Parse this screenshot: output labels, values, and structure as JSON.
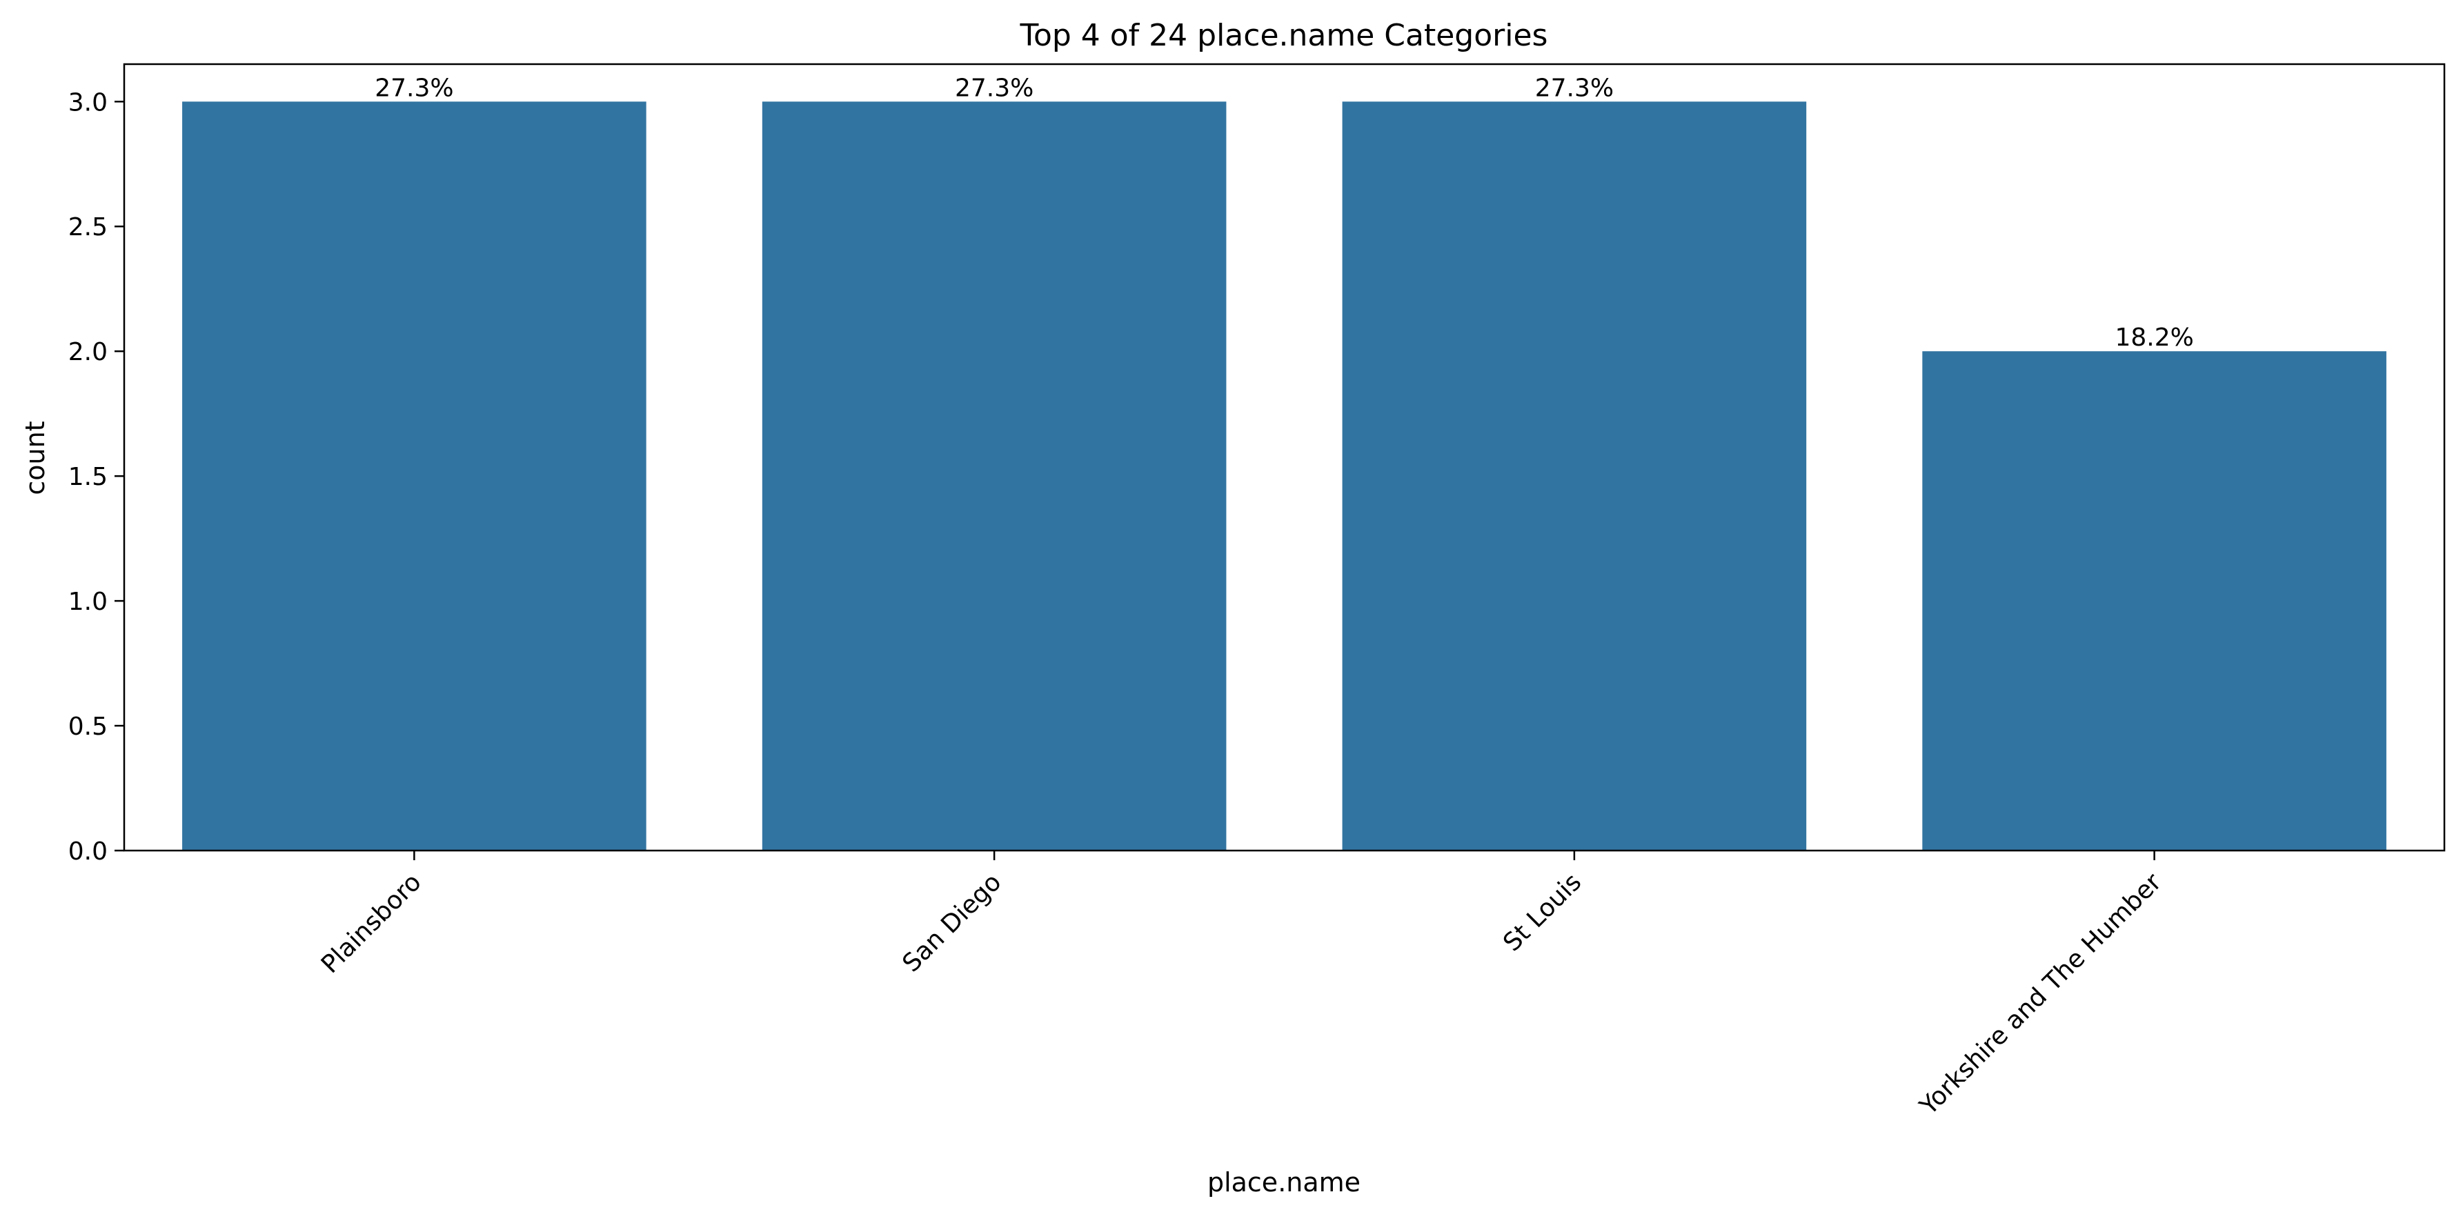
{
  "chart_data": {
    "type": "bar",
    "title": "Top 4 of 24 place.name Categories",
    "xlabel": "place.name",
    "ylabel": "count",
    "categories": [
      "Plainsboro",
      "San Diego",
      "St Louis",
      "Yorkshire and The Humber"
    ],
    "values": [
      3,
      3,
      3,
      2
    ],
    "bar_labels": [
      "27.3%",
      "27.3%",
      "27.3%",
      "18.2%"
    ],
    "ylim": [
      0,
      3.15
    ],
    "yticks": [
      "0.0",
      "0.5",
      "1.0",
      "1.5",
      "2.0",
      "2.5",
      "3.0"
    ],
    "ytick_values": [
      0,
      0.5,
      1,
      1.5,
      2,
      2.5,
      3
    ],
    "bar_color": "#3274a1",
    "grid": false,
    "legend": "none"
  }
}
